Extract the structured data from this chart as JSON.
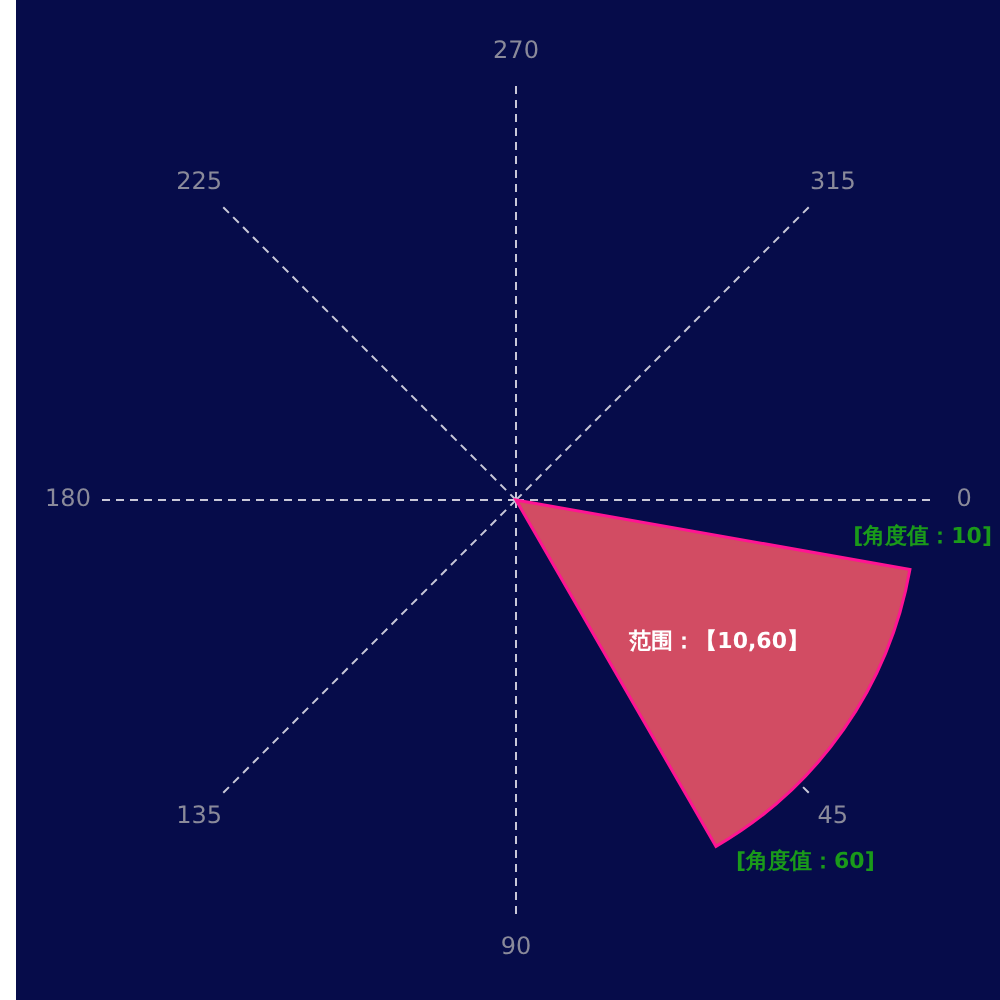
{
  "chart_data": {
    "type": "other",
    "values": [
      10,
      60
    ],
    "color": "#d24c63",
    "value_labels": [
      "[角度值：10]",
      "[角度值：60]"
    ],
    "annotations": [
      "范围：【10,60】",
      "0",
      "45",
      "90",
      "135",
      "180",
      "225",
      "270",
      "315"
    ]
  }
}
